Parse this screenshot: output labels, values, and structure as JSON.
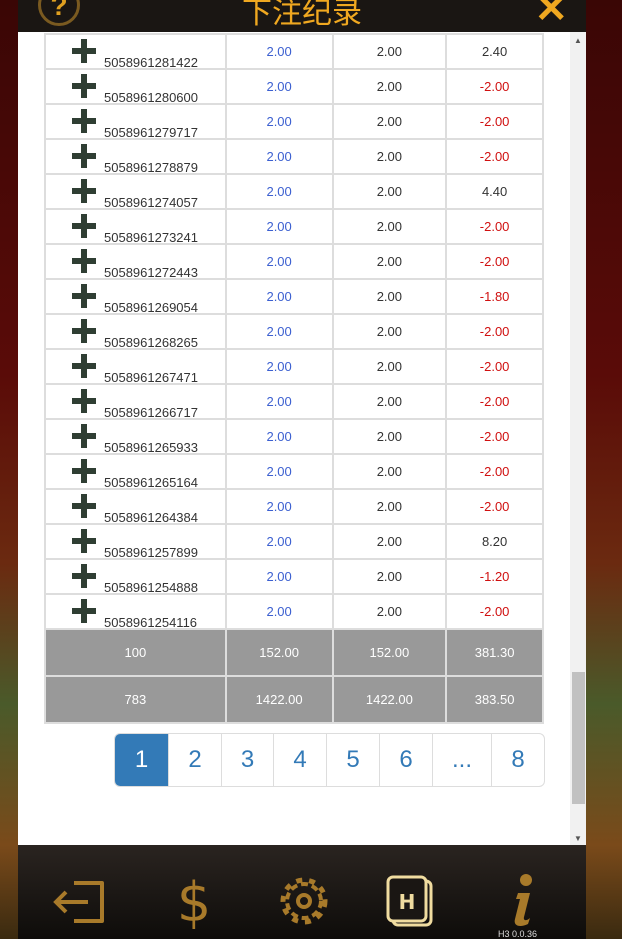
{
  "header": {
    "title": "下注纪录",
    "help_icon": "question-icon",
    "close_icon": "close-icon"
  },
  "rows": [
    {
      "id": "5058961281422",
      "bet": "2.00",
      "valid": "2.00",
      "result": "2.40"
    },
    {
      "id": "5058961280600",
      "bet": "2.00",
      "valid": "2.00",
      "result": "-2.00"
    },
    {
      "id": "5058961279717",
      "bet": "2.00",
      "valid": "2.00",
      "result": "-2.00"
    },
    {
      "id": "5058961278879",
      "bet": "2.00",
      "valid": "2.00",
      "result": "-2.00"
    },
    {
      "id": "5058961274057",
      "bet": "2.00",
      "valid": "2.00",
      "result": "4.40"
    },
    {
      "id": "5058961273241",
      "bet": "2.00",
      "valid": "2.00",
      "result": "-2.00"
    },
    {
      "id": "5058961272443",
      "bet": "2.00",
      "valid": "2.00",
      "result": "-2.00"
    },
    {
      "id": "5058961269054",
      "bet": "2.00",
      "valid": "2.00",
      "result": "-1.80"
    },
    {
      "id": "5058961268265",
      "bet": "2.00",
      "valid": "2.00",
      "result": "-2.00"
    },
    {
      "id": "5058961267471",
      "bet": "2.00",
      "valid": "2.00",
      "result": "-2.00"
    },
    {
      "id": "5058961266717",
      "bet": "2.00",
      "valid": "2.00",
      "result": "-2.00"
    },
    {
      "id": "5058961265933",
      "bet": "2.00",
      "valid": "2.00",
      "result": "-2.00"
    },
    {
      "id": "5058961265164",
      "bet": "2.00",
      "valid": "2.00",
      "result": "-2.00"
    },
    {
      "id": "5058961264384",
      "bet": "2.00",
      "valid": "2.00",
      "result": "-2.00"
    },
    {
      "id": "5058961257899",
      "bet": "2.00",
      "valid": "2.00",
      "result": "8.20"
    },
    {
      "id": "5058961254888",
      "bet": "2.00",
      "valid": "2.00",
      "result": "-1.20"
    },
    {
      "id": "5058961254116",
      "bet": "2.00",
      "valid": "2.00",
      "result": "-2.00"
    }
  ],
  "totals": [
    {
      "count": "100",
      "bet": "152.00",
      "valid": "152.00",
      "result": "381.30"
    },
    {
      "count": "783",
      "bet": "1422.00",
      "valid": "1422.00",
      "result": "383.50"
    }
  ],
  "pagination": {
    "pages": [
      "1",
      "2",
      "3",
      "4",
      "5",
      "6",
      "...",
      "8"
    ],
    "active": "1"
  },
  "footer": {
    "icons": [
      "logout-icon",
      "dollar-icon",
      "gear-icon",
      "history-icon",
      "info-icon"
    ],
    "active": "history-icon",
    "version": "H3 0.0.36"
  },
  "colors": {
    "accent": "#f0a820",
    "link": "#337ab7",
    "negative": "#d01010"
  }
}
